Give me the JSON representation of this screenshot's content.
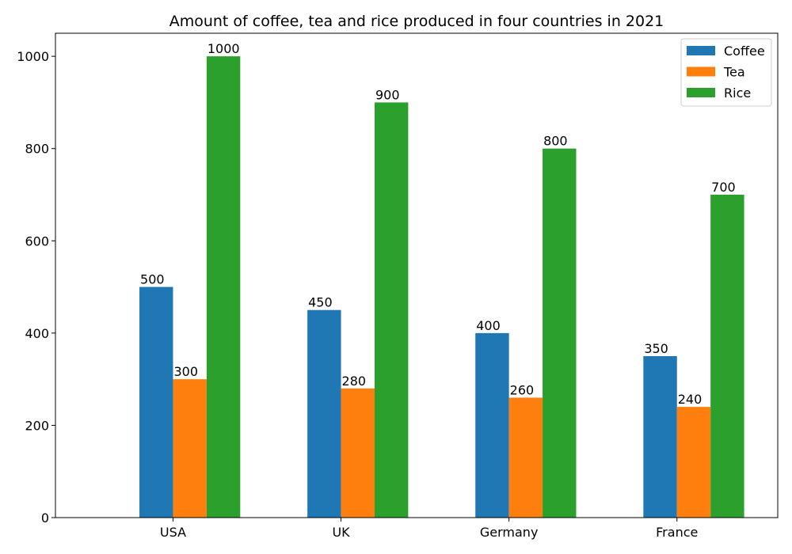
{
  "chart_data": {
    "type": "bar",
    "title": "Amount of coffee, tea and rice produced in four countries in 2021",
    "xlabel": "",
    "ylabel": "",
    "categories": [
      "USA",
      "UK",
      "Germany",
      "France"
    ],
    "series": [
      {
        "name": "Coffee",
        "color": "#1f77b4",
        "values": [
          500,
          450,
          400,
          350
        ]
      },
      {
        "name": "Tea",
        "color": "#ff7f0e",
        "values": [
          300,
          280,
          260,
          240
        ]
      },
      {
        "name": "Rice",
        "color": "#2ca02c",
        "values": [
          1000,
          900,
          800,
          700
        ]
      }
    ],
    "ylim": [
      0,
      1050
    ],
    "yticks": [
      0,
      200,
      400,
      600,
      800,
      1000
    ],
    "grid": false,
    "legend_position": "top-right"
  }
}
